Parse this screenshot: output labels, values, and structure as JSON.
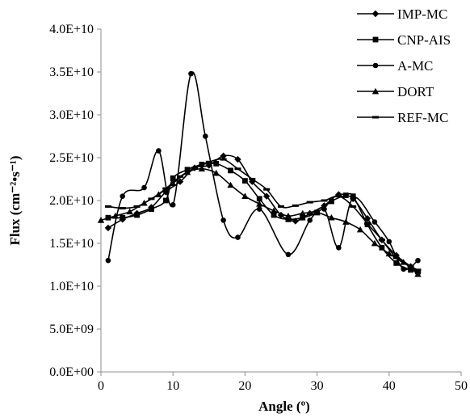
{
  "chart_data": {
    "type": "line",
    "xlabel": "Angle (º)",
    "ylabel": "Flux (cm⁻²•s⁻¹)",
    "xlim": [
      0,
      50
    ],
    "ylim": [
      0,
      40000000000
    ],
    "x_ticks": [
      0,
      10,
      20,
      30,
      40,
      50
    ],
    "x_tick_labels": [
      "0",
      "10",
      "20",
      "30",
      "40",
      "50"
    ],
    "y_ticks": [
      0,
      5000000000,
      10000000000,
      15000000000,
      20000000000,
      25000000000,
      30000000000,
      35000000000,
      40000000000
    ],
    "y_tick_labels": [
      "0.0E+00",
      "5.0E+09",
      "1.0E+10",
      "1.5E+10",
      "2.0E+10",
      "2.5E+10",
      "3.0E+10",
      "3.5E+10",
      "4.0E+10"
    ],
    "grid": false,
    "legend_position": "top-right",
    "series": [
      {
        "name": "IMP-MC",
        "marker": "diamond",
        "x": [
          1,
          3,
          5,
          7,
          9,
          11,
          13,
          15,
          17,
          19,
          21,
          23,
          25,
          27,
          29,
          31,
          33,
          35,
          37,
          39,
          41,
          43,
          44
        ],
        "y": [
          16800000000,
          17800000000,
          18500000000,
          19200000000,
          21000000000,
          22200000000,
          23800000000,
          24100000000,
          25200000000,
          24800000000,
          22200000000,
          20500000000,
          18300000000,
          17600000000,
          18500000000,
          19400000000,
          20700000000,
          20200000000,
          17900000000,
          15400000000,
          13600000000,
          12300000000,
          11600000000
        ]
      },
      {
        "name": "CNP-AIS",
        "marker": "square",
        "x": [
          1,
          3,
          5,
          7,
          9,
          10,
          12,
          14,
          16,
          18,
          20,
          22,
          24,
          26,
          28,
          30,
          32,
          34,
          35,
          37,
          39,
          41,
          43,
          44
        ],
        "y": [
          18000000000,
          18000000000,
          18300000000,
          19000000000,
          20000000000,
          22600000000,
          23600000000,
          24200000000,
          24300000000,
          23500000000,
          22300000000,
          20200000000,
          18300000000,
          17800000000,
          18000000000,
          18600000000,
          19900000000,
          20600000000,
          20500000000,
          17200000000,
          14500000000,
          12700000000,
          11900000000,
          11700000000
        ]
      },
      {
        "name": "A-MC",
        "marker": "circle",
        "x": [
          1,
          3,
          6,
          8,
          10,
          12.5,
          14.5,
          17,
          19,
          22,
          26,
          29,
          31,
          33,
          35,
          38,
          40,
          42,
          44
        ],
        "y": [
          13000000000,
          20500000000,
          21500000000,
          25800000000,
          19500000000,
          34800000000,
          27500000000,
          17700000000,
          15700000000,
          19000000000,
          13700000000,
          17700000000,
          19000000000,
          14500000000,
          20300000000,
          17500000000,
          15200000000,
          12000000000,
          13000000000
        ]
      },
      {
        "name": "DORT",
        "marker": "triangle",
        "x": [
          0,
          2,
          4,
          6,
          8,
          10,
          12,
          14,
          16,
          18,
          20,
          22,
          24,
          26,
          28,
          30,
          32,
          34,
          36,
          38,
          40,
          42,
          44
        ],
        "y": [
          17700000000,
          18200000000,
          18700000000,
          19700000000,
          20700000000,
          22000000000,
          23300000000,
          23700000000,
          23200000000,
          21800000000,
          20500000000,
          19600000000,
          18800000000,
          18200000000,
          18500000000,
          18600000000,
          18000000000,
          17500000000,
          16600000000,
          15000000000,
          13800000000,
          12800000000,
          11400000000
        ]
      },
      {
        "name": "REF-MC",
        "marker": "dash",
        "x": [
          1,
          3,
          5,
          7,
          9,
          11,
          13,
          15,
          17,
          19,
          21,
          23,
          25,
          27,
          29,
          31,
          33,
          35,
          37,
          39,
          41,
          43,
          44
        ],
        "y": [
          19300000000,
          19100000000,
          19300000000,
          20200000000,
          21400000000,
          22800000000,
          23800000000,
          24500000000,
          24800000000,
          23700000000,
          22500000000,
          21300000000,
          19300000000,
          19400000000,
          19800000000,
          20000000000,
          20500000000,
          19300000000,
          17300000000,
          15400000000,
          13300000000,
          12300000000,
          11900000000
        ]
      }
    ]
  }
}
